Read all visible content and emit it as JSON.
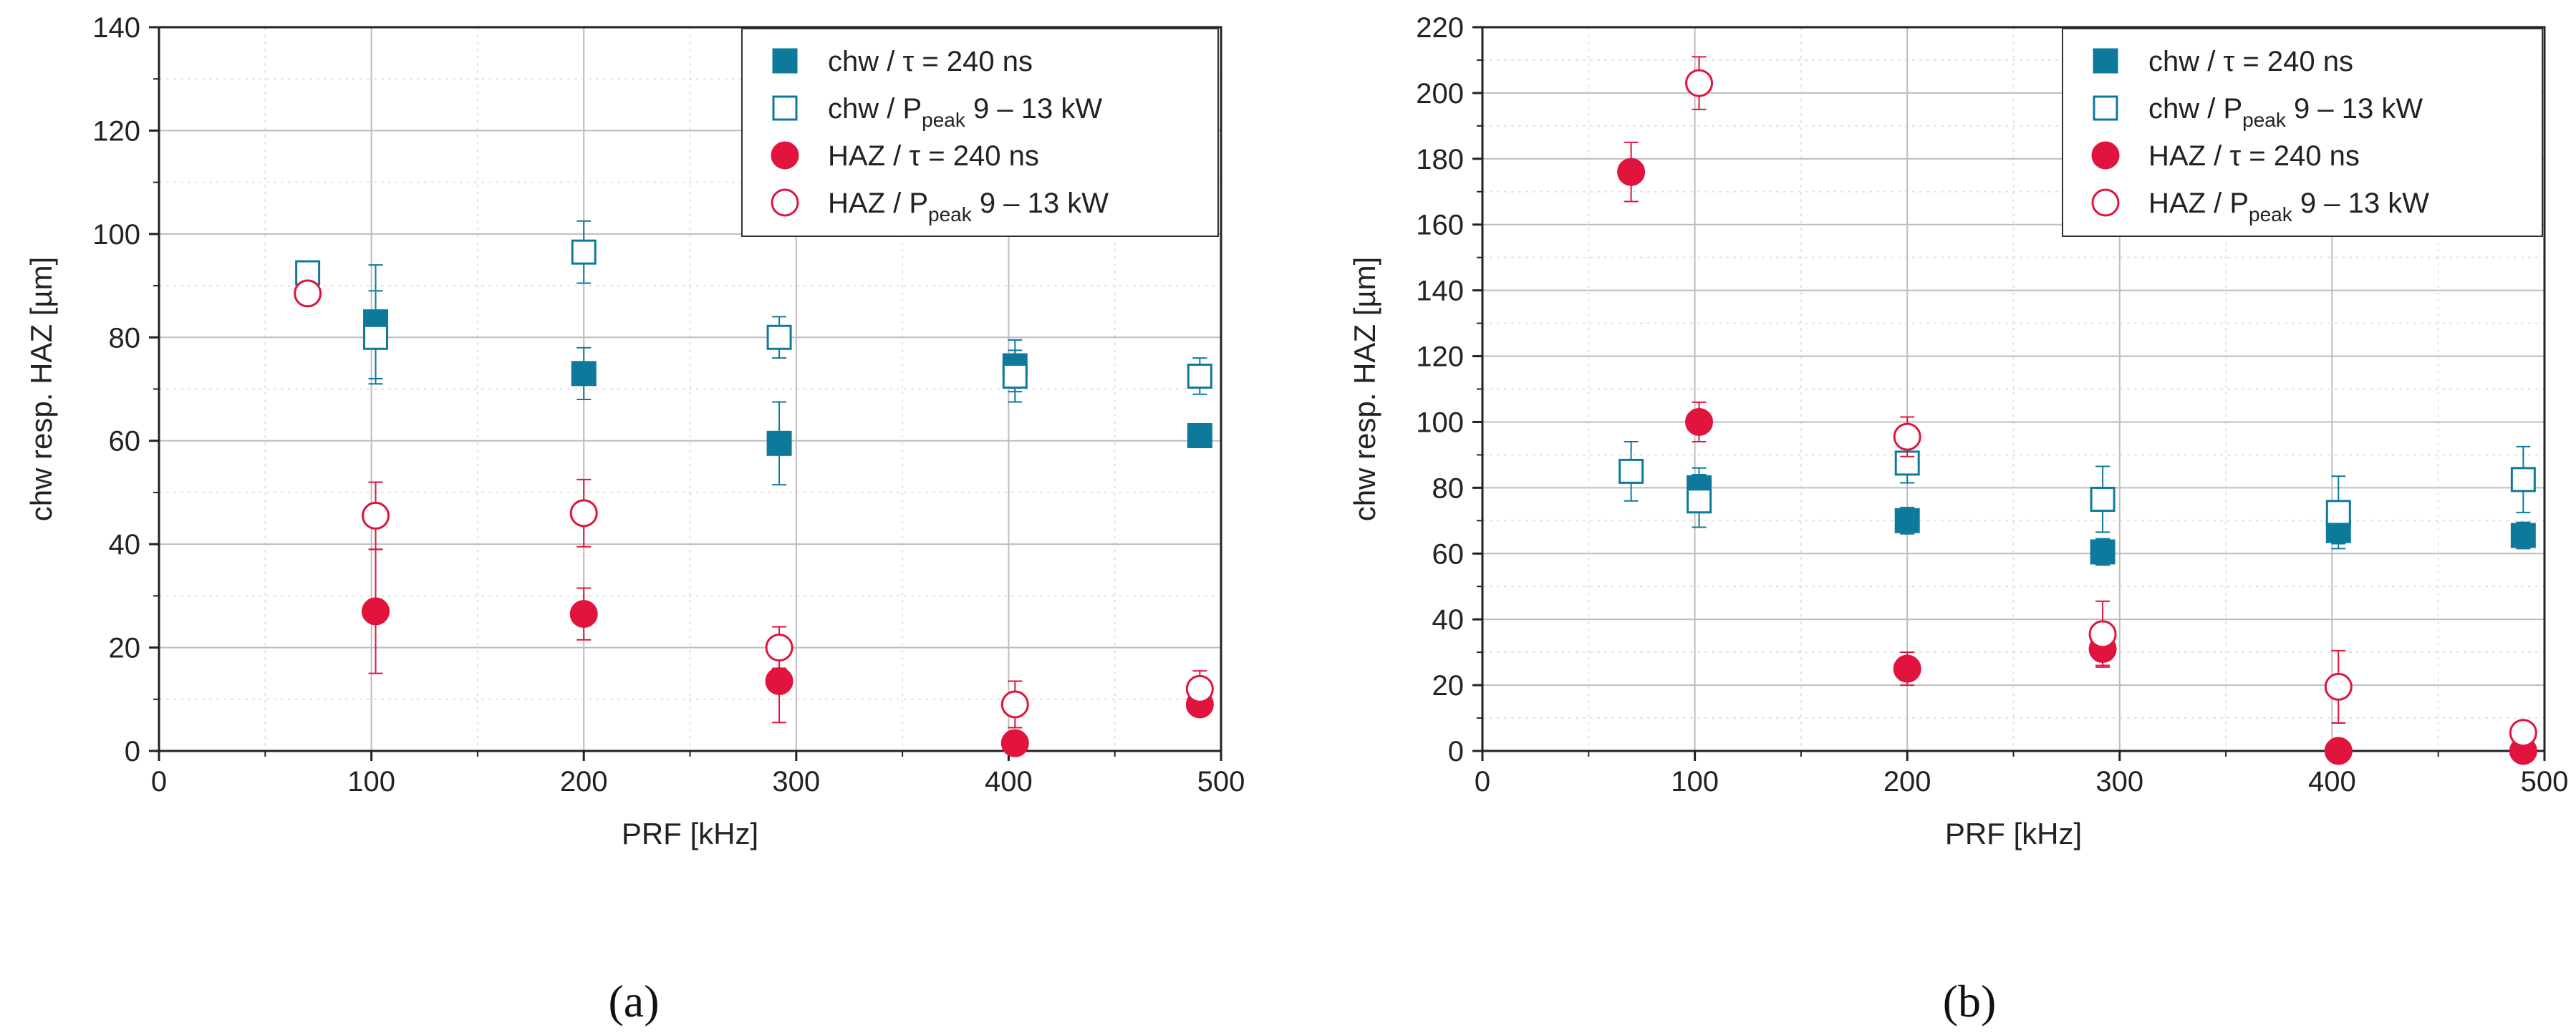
{
  "figure": {
    "panel_a_caption": "(a)",
    "panel_b_caption": "(b)"
  },
  "colors": {
    "chw": "#0e7a9b",
    "haz": "#e0143c",
    "grid_major": "#bdbdbd",
    "grid_minor": "#e3e3e3"
  },
  "chart_data": [
    {
      "type": "scatter",
      "id": "a",
      "xlabel": "PRF [kHz]",
      "ylabel": "chw resp. HAZ  [µm]",
      "xlim": [
        0,
        500
      ],
      "ylim": [
        0,
        140
      ],
      "xticks": [
        0,
        100,
        200,
        300,
        400,
        500
      ],
      "yticks": [
        0,
        20,
        40,
        60,
        80,
        100,
        120,
        140
      ],
      "legend_position": "top-right",
      "series": [
        {
          "name": "chw / τ = 240 ns",
          "marker": "square-filled",
          "color": "chw",
          "x": [
            102,
            200,
            292,
            403,
            490
          ],
          "y": [
            83,
            73,
            59.5,
            74.5,
            61
          ],
          "err": [
            11,
            5,
            8,
            5,
            0
          ]
        },
        {
          "name": "chw / P_peak 9 – 13 kW",
          "marker": "square-open",
          "color": "chw",
          "x": [
            70,
            102,
            200,
            292,
            403,
            490
          ],
          "y": [
            92.5,
            80,
            96.5,
            80,
            72.5,
            72.5
          ],
          "err": [
            0,
            9,
            6,
            4,
            5,
            3.5
          ]
        },
        {
          "name": "HAZ / τ = 240 ns",
          "marker": "circle-filled",
          "color": "haz",
          "x": [
            102,
            200,
            292,
            403,
            490
          ],
          "y": [
            27,
            26.5,
            13.5,
            1.5,
            9
          ],
          "err": [
            12,
            5,
            8,
            0,
            0
          ]
        },
        {
          "name": "HAZ / P_peak 9 – 13 kW",
          "marker": "circle-open",
          "color": "haz",
          "x": [
            70,
            102,
            200,
            292,
            403,
            490
          ],
          "y": [
            88.5,
            45.5,
            46,
            20,
            9,
            12
          ],
          "err": [
            0,
            6.5,
            6.5,
            4,
            4.5,
            3.5
          ]
        }
      ]
    },
    {
      "type": "scatter",
      "id": "b",
      "xlabel": "PRF [kHz]",
      "ylabel": "chw resp. HAZ [µm]",
      "xlim": [
        0,
        500
      ],
      "ylim": [
        0,
        220
      ],
      "xticks": [
        0,
        100,
        200,
        300,
        400,
        500
      ],
      "yticks": [
        0,
        20,
        40,
        60,
        80,
        100,
        120,
        140,
        160,
        180,
        200,
        220
      ],
      "legend_position": "top-right",
      "series": [
        {
          "name": "chw / τ = 240 ns",
          "marker": "square-filled",
          "color": "chw",
          "x": [
            102,
            200,
            292,
            403,
            490
          ],
          "y": [
            80,
            70,
            60.5,
            67,
            65.5
          ],
          "err": [
            6,
            4,
            4,
            4,
            4
          ]
        },
        {
          "name": "chw / P_peak 9 – 13 kW",
          "marker": "square-open",
          "color": "chw",
          "x": [
            70,
            102,
            200,
            292,
            403,
            490
          ],
          "y": [
            85,
            76,
            87.5,
            76.5,
            72.5,
            82.5
          ],
          "err": [
            9,
            8,
            6,
            10,
            11,
            10
          ]
        },
        {
          "name": "HAZ / τ = 240 ns",
          "marker": "circle-filled",
          "color": "haz",
          "x": [
            70,
            102,
            200,
            292,
            403,
            490
          ],
          "y": [
            176,
            100,
            25,
            31,
            0,
            0
          ],
          "err": [
            9,
            6,
            5,
            5,
            0,
            0
          ]
        },
        {
          "name": "HAZ / P_peak 9 – 13 kW",
          "marker": "circle-open",
          "color": "haz",
          "x": [
            102,
            200,
            292,
            403,
            490
          ],
          "y": [
            203,
            95.5,
            35.5,
            19.5,
            5.5
          ],
          "err": [
            8,
            6,
            10,
            11,
            3
          ]
        }
      ]
    }
  ],
  "legend": {
    "items": [
      {
        "main": "chw / τ = 240 ns",
        "pre": "",
        "sub": "",
        "post": ""
      },
      {
        "main": "",
        "pre": "chw / P",
        "sub": "peak",
        "post": " 9 – 13 kW"
      },
      {
        "main": "HAZ / τ = 240 ns",
        "pre": "",
        "sub": "",
        "post": ""
      },
      {
        "main": "",
        "pre": "HAZ / P",
        "sub": "peak",
        "post": " 9 – 13 kW"
      }
    ]
  }
}
